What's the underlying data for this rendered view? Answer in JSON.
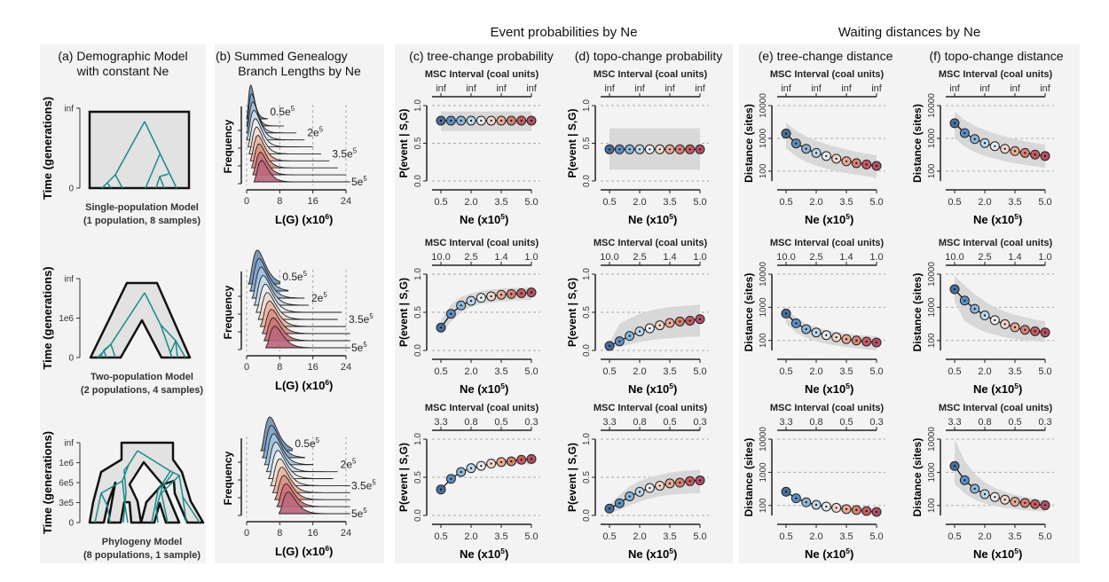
{
  "headers": {
    "events": "Event probabilities by Ne",
    "waiting": "Waiting distances by Ne"
  },
  "columns": {
    "a": [
      "(a) Demographic Model",
      "with constant Ne"
    ],
    "b": [
      "(b) Summed Genealogy",
      "Branch Lengths by Ne"
    ],
    "c": "(c) tree-change probability",
    "d": "(d) topo-change probability",
    "e": "(e) tree-change distance",
    "f": "(f) topo-change distance"
  },
  "models": [
    {
      "name": "Single-population Model",
      "detail": "(1 population, 8 samples)",
      "ylabel": "Time (generations)",
      "yticks": [
        "0",
        "inf"
      ]
    },
    {
      "name": "Two-population Model",
      "detail": "(2 populations, 4 samples)",
      "ylabel": "Time (generations)",
      "yticks": [
        "0",
        "1e6",
        "inf"
      ]
    },
    {
      "name": "Phylogeny Model",
      "detail": "(8 populations, 1 sample)",
      "ylabel": "Time (generations)",
      "yticks": [
        "0",
        "3e5",
        "6e5",
        "1e6",
        "inf"
      ]
    }
  ],
  "colors": {
    "ne_palette": [
      "#4a6f9c",
      "#5b8fc4",
      "#8ab6d9",
      "#bcd5e8",
      "#e6ecf2",
      "#f2d6c9",
      "#e8a991",
      "#d97f74",
      "#c85a62",
      "#b25068"
    ],
    "tree_line": "#1a8a8a",
    "band": "#d8d8d8",
    "panel_bg": "#f3f3f3"
  },
  "chart_data": [
    {
      "id": "b",
      "type": "area",
      "title": "Summed Genealogy Branch Lengths by Ne",
      "xlabel": "L(G) (x10^6)",
      "ylabel": "Frequency",
      "xticks": [
        "0",
        "8",
        "16",
        "24"
      ],
      "xlim": [
        0,
        24
      ],
      "curve_labels": [
        "0.5e5",
        "2e5",
        "3.5e5",
        "5e5"
      ],
      "ne": [
        0.5,
        1.0,
        1.5,
        2.0,
        2.5,
        3.0,
        3.5,
        4.0,
        4.5,
        5.0
      ],
      "rows": [
        {
          "model": "single",
          "peak": [
            1.0,
            1.2,
            1.5,
            1.8,
            2.1,
            2.4,
            2.7,
            3.0,
            3.3,
            3.6
          ],
          "tail_end": [
            5,
            9,
            12,
            14,
            16,
            18,
            20,
            22,
            24,
            25
          ]
        },
        {
          "model": "two-pop",
          "peak": [
            2.6,
            3.0,
            3.5,
            4.0,
            4.5,
            5.0,
            5.5,
            6.0,
            6.4,
            6.8
          ],
          "tail_end": [
            8,
            10,
            14,
            15,
            23,
            22,
            24,
            25,
            25,
            25
          ]
        },
        {
          "model": "phylogeny",
          "peak": [
            5.6,
            6.0,
            6.5,
            7.0,
            7.5,
            8.0,
            8.5,
            9.0,
            9.5,
            10.0
          ],
          "tail_end": [
            11,
            14,
            16,
            22,
            21,
            25,
            25,
            25,
            25,
            25
          ]
        }
      ]
    },
    {
      "id": "c",
      "type": "line",
      "title": "tree-change probability",
      "xlabel": "Ne (x10^5)",
      "ylabel": "P(event | S,G)",
      "top_axis_label": "MSC Interval (coal units)",
      "x": [
        0.5,
        1.0,
        1.5,
        2.0,
        2.5,
        3.0,
        3.5,
        4.0,
        4.5,
        5.0
      ],
      "xticks": [
        "0.5",
        "2.0",
        "3.5",
        "5.0"
      ],
      "yticks": [
        "0.0",
        "0.5",
        "1.0"
      ],
      "ylim": [
        0,
        1
      ],
      "rows": [
        {
          "top_ticks": [
            "inf",
            "inf",
            "inf",
            "inf"
          ],
          "y": [
            0.8,
            0.8,
            0.8,
            0.8,
            0.8,
            0.8,
            0.8,
            0.8,
            0.8,
            0.8
          ],
          "band_lo": [
            0.66,
            0.66,
            0.66,
            0.66,
            0.66,
            0.66,
            0.66,
            0.66,
            0.66,
            0.66
          ],
          "band_hi": [
            0.92,
            0.92,
            0.92,
            0.92,
            0.92,
            0.92,
            0.92,
            0.92,
            0.92,
            0.92
          ]
        },
        {
          "top_ticks": [
            "10.0",
            "2.5",
            "1.4",
            "1.0"
          ],
          "y": [
            0.3,
            0.48,
            0.59,
            0.65,
            0.69,
            0.71,
            0.73,
            0.74,
            0.75,
            0.76
          ],
          "band_lo": [
            0.2,
            0.38,
            0.5,
            0.57,
            0.61,
            0.63,
            0.64,
            0.65,
            0.66,
            0.66
          ],
          "band_hi": [
            0.4,
            0.6,
            0.7,
            0.75,
            0.78,
            0.8,
            0.81,
            0.82,
            0.82,
            0.83
          ]
        },
        {
          "top_ticks": [
            "3.3",
            "0.8",
            "0.5",
            "0.3"
          ],
          "y": [
            0.34,
            0.48,
            0.57,
            0.62,
            0.65,
            0.68,
            0.7,
            0.71,
            0.73,
            0.74
          ],
          "band_lo": [
            0.34,
            0.48,
            0.56,
            0.6,
            0.63,
            0.65,
            0.66,
            0.67,
            0.67,
            0.67
          ],
          "band_hi": [
            0.34,
            0.49,
            0.58,
            0.64,
            0.68,
            0.71,
            0.73,
            0.74,
            0.75,
            0.76
          ]
        }
      ]
    },
    {
      "id": "d",
      "type": "line",
      "title": "topo-change probability",
      "xlabel": "Ne (x10^5)",
      "ylabel": "P(event | S,G)",
      "top_axis_label": "MSC Interval (coal units)",
      "x": [
        0.5,
        1.0,
        1.5,
        2.0,
        2.5,
        3.0,
        3.5,
        4.0,
        4.5,
        5.0
      ],
      "xticks": [
        "0.5",
        "2.0",
        "3.5",
        "5.0"
      ],
      "yticks": [
        "0.0",
        "0.5",
        "1.0"
      ],
      "ylim": [
        0,
        1
      ],
      "rows": [
        {
          "top_ticks": [
            "inf",
            "inf",
            "inf",
            "inf"
          ],
          "y": [
            0.42,
            0.42,
            0.42,
            0.42,
            0.42,
            0.42,
            0.42,
            0.42,
            0.42,
            0.42
          ],
          "band_lo": [
            0.15,
            0.15,
            0.15,
            0.15,
            0.15,
            0.15,
            0.15,
            0.15,
            0.15,
            0.15
          ],
          "band_hi": [
            0.7,
            0.7,
            0.7,
            0.7,
            0.7,
            0.7,
            0.7,
            0.7,
            0.7,
            0.7
          ]
        },
        {
          "top_ticks": [
            "10.0",
            "2.5",
            "1.4",
            "1.0"
          ],
          "y": [
            0.06,
            0.12,
            0.19,
            0.25,
            0.29,
            0.33,
            0.36,
            0.38,
            0.39,
            0.41
          ],
          "band_lo": [
            0.03,
            0.05,
            0.08,
            0.11,
            0.13,
            0.15,
            0.16,
            0.17,
            0.18,
            0.18
          ],
          "band_hi": [
            0.1,
            0.35,
            0.42,
            0.48,
            0.52,
            0.55,
            0.57,
            0.58,
            0.59,
            0.6
          ]
        },
        {
          "top_ticks": [
            "3.3",
            "0.8",
            "0.5",
            "0.3"
          ],
          "y": [
            0.09,
            0.16,
            0.25,
            0.31,
            0.36,
            0.39,
            0.42,
            0.43,
            0.45,
            0.46
          ],
          "band_lo": [
            0.03,
            0.07,
            0.13,
            0.18,
            0.22,
            0.25,
            0.27,
            0.28,
            0.29,
            0.29
          ],
          "band_hi": [
            0.14,
            0.27,
            0.38,
            0.45,
            0.5,
            0.53,
            0.56,
            0.58,
            0.59,
            0.6
          ]
        }
      ]
    },
    {
      "id": "e",
      "type": "line",
      "title": "tree-change distance",
      "xlabel": "Ne (x10^5)",
      "ylabel": "Distance (sites)",
      "top_axis_label": "MSC Interval (coal units)",
      "yscale": "log",
      "x": [
        0.5,
        1.0,
        1.5,
        2.0,
        2.5,
        3.0,
        3.5,
        4.0,
        4.5,
        5.0
      ],
      "xticks": [
        "0.5",
        "2.0",
        "3.5",
        "5.0"
      ],
      "yticks": [
        "100",
        "1000",
        "10000"
      ],
      "ylim": [
        50,
        10000
      ],
      "rows": [
        {
          "top_ticks": [
            "inf",
            "inf",
            "inf",
            "inf"
          ],
          "y": [
            1400,
            700,
            480,
            360,
            290,
            240,
            200,
            175,
            160,
            145
          ],
          "band_lo": [
            500,
            280,
            190,
            145,
            120,
            100,
            88,
            78,
            70,
            62
          ],
          "band_hi": [
            3000,
            1700,
            1150,
            850,
            670,
            550,
            460,
            390,
            340,
            300
          ]
        },
        {
          "top_ticks": [
            "10.0",
            "2.5",
            "1.4",
            "1.0"
          ],
          "y": [
            650,
            330,
            220,
            175,
            145,
            125,
            110,
            100,
            93,
            87
          ],
          "band_lo": [
            330,
            170,
            120,
            95,
            80,
            70,
            63,
            58,
            54,
            50
          ],
          "band_hi": [
            900,
            480,
            320,
            250,
            205,
            180,
            160,
            148,
            140,
            135
          ]
        },
        {
          "top_ticks": [
            "3.3",
            "0.8",
            "0.5",
            "0.3"
          ],
          "y": [
            260,
            165,
            125,
            105,
            93,
            85,
            78,
            73,
            68,
            64
          ],
          "band_lo": [
            260,
            150,
            110,
            90,
            78,
            70,
            63,
            58,
            55,
            52
          ],
          "band_hi": [
            260,
            180,
            140,
            120,
            108,
            100,
            93,
            88,
            84,
            80
          ]
        }
      ]
    },
    {
      "id": "f",
      "type": "line",
      "title": "topo-change distance",
      "xlabel": "Ne (x10^5)",
      "ylabel": "Distance (sites)",
      "top_axis_label": "MSC Interval (coal units)",
      "yscale": "log",
      "x": [
        0.5,
        1.0,
        1.5,
        2.0,
        2.5,
        3.0,
        3.5,
        4.0,
        4.5,
        5.0
      ],
      "xticks": [
        "0.5",
        "2.0",
        "3.5",
        "5.0"
      ],
      "yticks": [
        "100",
        "1000",
        "10000"
      ],
      "ylim": [
        50,
        10000
      ],
      "rows": [
        {
          "top_ticks": [
            "inf",
            "inf",
            "inf",
            "inf"
          ],
          "y": [
            2900,
            1450,
            950,
            720,
            580,
            480,
            410,
            360,
            320,
            290
          ],
          "band_lo": [
            1000,
            560,
            380,
            290,
            240,
            200,
            175,
            155,
            140,
            125
          ],
          "band_hi": [
            6500,
            3600,
            2400,
            1800,
            1400,
            1150,
            950,
            820,
            720,
            650
          ]
        },
        {
          "top_ticks": [
            "10.0",
            "2.5",
            "1.4",
            "1.0"
          ],
          "y": [
            3500,
            1600,
            900,
            570,
            410,
            310,
            250,
            210,
            190,
            175
          ],
          "band_lo": [
            1500,
            380,
            250,
            180,
            150,
            125,
            110,
            100,
            95,
            90
          ],
          "band_hi": [
            9000,
            4500,
            2500,
            1500,
            1000,
            750,
            600,
            500,
            430,
            380
          ]
        },
        {
          "top_ticks": [
            "3.3",
            "0.8",
            "0.5",
            "0.3"
          ],
          "y": [
            1550,
            580,
            320,
            220,
            180,
            150,
            130,
            120,
            110,
            102
          ],
          "band_lo": [
            450,
            230,
            150,
            115,
            95,
            85,
            78,
            72,
            68,
            65
          ],
          "band_hi": [
            10000,
            2200,
            900,
            500,
            340,
            260,
            210,
            180,
            160,
            145
          ]
        }
      ]
    }
  ]
}
